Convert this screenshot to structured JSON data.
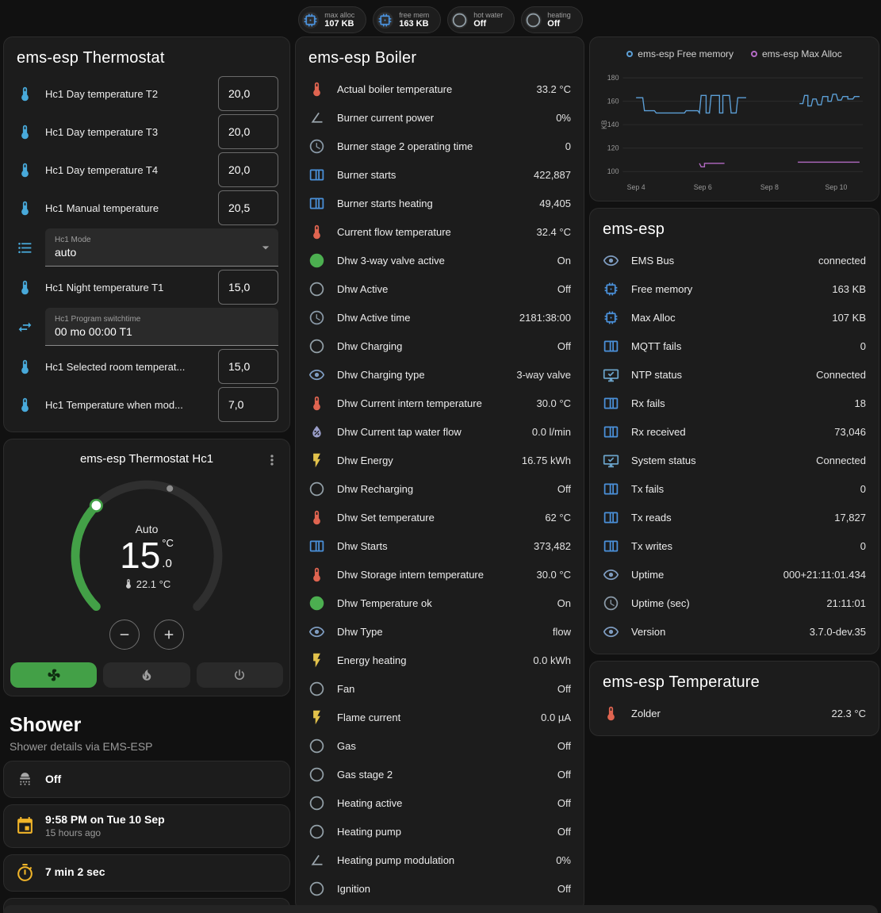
{
  "colors": {
    "accent_green": "#43a047",
    "badge_blue": "#4a90d9",
    "amber": "#f0b429"
  },
  "topbar": {
    "badges": [
      {
        "icon": "memory",
        "label": "max alloc",
        "value": "107 KB"
      },
      {
        "icon": "memory",
        "label": "free mem",
        "value": "163 KB"
      },
      {
        "icon": "circle-outline",
        "label": "hot water",
        "value": "Off"
      },
      {
        "icon": "circle-outline",
        "label": "heating",
        "value": "Off"
      }
    ]
  },
  "settings": {
    "title": "ems-esp Thermostat",
    "rows": [
      {
        "type": "number",
        "icon": "thermometer-water",
        "label": "Hc1 Day temperature T2",
        "field_label": "",
        "value": "20,0"
      },
      {
        "type": "number",
        "icon": "thermometer-water",
        "label": "Hc1 Day temperature T3",
        "field_label": "",
        "value": "20,0"
      },
      {
        "type": "number",
        "icon": "thermometer-water",
        "label": "Hc1 Day temperature T4",
        "field_label": "",
        "value": "20,0"
      },
      {
        "type": "number",
        "icon": "thermometer-water",
        "label": "Hc1 Manual temperature",
        "field_label": "",
        "value": "20,5"
      },
      {
        "type": "select",
        "icon": "list",
        "label": "",
        "field_label": "Hc1 Mode",
        "value": "auto"
      },
      {
        "type": "number",
        "icon": "thermometer-water",
        "label": "Hc1 Night temperature T1",
        "field_label": "",
        "value": "15,0"
      },
      {
        "type": "text",
        "icon": "program",
        "label": "",
        "field_label": "Hc1 Program switchtime",
        "value": "00 mo 00:00 T1"
      },
      {
        "type": "number",
        "icon": "thermometer-water",
        "label": "Hc1 Selected room temperat...",
        "field_label": "",
        "value": "15,0"
      },
      {
        "type": "number",
        "icon": "thermometer-water",
        "label": "Hc1 Temperature when mod...",
        "field_label": "",
        "value": "7,0"
      }
    ]
  },
  "thermostat_hc1": {
    "title": "ems-esp Thermostat Hc1",
    "mode": "Auto",
    "target_whole": "15",
    "target_fraction": ".0",
    "unit": "°C",
    "current_temp": "22.1 °C",
    "mode_buttons": [
      {
        "icon": "fan",
        "state": "active"
      },
      {
        "icon": "fire",
        "state": "inactive"
      },
      {
        "icon": "power",
        "state": "inactive"
      }
    ]
  },
  "shower": {
    "heading": "Shower",
    "subheading": "Shower details via EMS-ESP",
    "tiles": [
      {
        "icon": "shower-head",
        "title": "Off",
        "subtitle": ""
      },
      {
        "icon": "calendar",
        "title": "9:58 PM on Tue 10 Sep",
        "subtitle": "15 hours ago"
      },
      {
        "icon": "timer",
        "title": "7 min 2 sec",
        "subtitle": ""
      }
    ],
    "partial_tile_icon": "snowflake"
  },
  "boiler": {
    "title": "ems-esp Boiler",
    "rows": [
      {
        "icon": "thermometer",
        "label": "Actual boiler temperature",
        "value": "33.2 °C"
      },
      {
        "icon": "angle",
        "label": "Burner current power",
        "value": "0%"
      },
      {
        "icon": "clock",
        "label": "Burner stage 2 operating time",
        "value": "0"
      },
      {
        "icon": "counter",
        "label": "Burner starts",
        "value": "422,887"
      },
      {
        "icon": "counter",
        "label": "Burner starts heating",
        "value": "49,405"
      },
      {
        "icon": "thermometer",
        "label": "Current flow temperature",
        "value": "32.4 °C"
      },
      {
        "icon": "check-circle",
        "label": "Dhw 3-way valve active",
        "value": "On"
      },
      {
        "icon": "circle-outline",
        "label": "Dhw Active",
        "value": "Off"
      },
      {
        "icon": "clock",
        "label": "Dhw Active time",
        "value": "2181:38:00"
      },
      {
        "icon": "circle-outline",
        "label": "Dhw Charging",
        "value": "Off"
      },
      {
        "icon": "eye",
        "label": "Dhw Charging type",
        "value": "3-way valve"
      },
      {
        "icon": "thermometer",
        "label": "Dhw Current intern temperature",
        "value": "30.0 °C"
      },
      {
        "icon": "water-pump",
        "label": "Dhw Current tap water flow",
        "value": "0.0 l/min"
      },
      {
        "icon": "flash",
        "label": "Dhw Energy",
        "value": "16.75 kWh"
      },
      {
        "icon": "circle-outline",
        "label": "Dhw Recharging",
        "value": "Off"
      },
      {
        "icon": "thermometer",
        "label": "Dhw Set temperature",
        "value": "62 °C"
      },
      {
        "icon": "counter",
        "label": "Dhw Starts",
        "value": "373,482"
      },
      {
        "icon": "thermometer",
        "label": "Dhw Storage intern temperature",
        "value": "30.0 °C"
      },
      {
        "icon": "check-circle",
        "label": "Dhw Temperature ok",
        "value": "On"
      },
      {
        "icon": "eye",
        "label": "Dhw Type",
        "value": "flow"
      },
      {
        "icon": "flash",
        "label": "Energy heating",
        "value": "0.0 kWh"
      },
      {
        "icon": "circle-outline",
        "label": "Fan",
        "value": "Off"
      },
      {
        "icon": "flash",
        "label": "Flame current",
        "value": "0.0 µA"
      },
      {
        "icon": "circle-outline",
        "label": "Gas",
        "value": "Off"
      },
      {
        "icon": "circle-outline",
        "label": "Gas stage 2",
        "value": "Off"
      },
      {
        "icon": "circle-outline",
        "label": "Heating active",
        "value": "Off"
      },
      {
        "icon": "circle-outline",
        "label": "Heating pump",
        "value": "Off"
      },
      {
        "icon": "angle",
        "label": "Heating pump modulation",
        "value": "0%"
      },
      {
        "icon": "circle-outline",
        "label": "Ignition",
        "value": "Off"
      }
    ]
  },
  "status": {
    "title": "ems-esp",
    "rows": [
      {
        "icon": "eye",
        "label": "EMS Bus",
        "value": "connected"
      },
      {
        "icon": "memory",
        "label": "Free memory",
        "value": "163 KB"
      },
      {
        "icon": "memory",
        "label": "Max Alloc",
        "value": "107 KB"
      },
      {
        "icon": "counter",
        "label": "MQTT fails",
        "value": "0"
      },
      {
        "icon": "monitor-check",
        "label": "NTP status",
        "value": "Connected"
      },
      {
        "icon": "counter",
        "label": "Rx fails",
        "value": "18"
      },
      {
        "icon": "counter",
        "label": "Rx received",
        "value": "73,046"
      },
      {
        "icon": "monitor-check",
        "label": "System status",
        "value": "Connected"
      },
      {
        "icon": "counter",
        "label": "Tx fails",
        "value": "0"
      },
      {
        "icon": "counter",
        "label": "Tx reads",
        "value": "17,827"
      },
      {
        "icon": "counter",
        "label": "Tx writes",
        "value": "0"
      },
      {
        "icon": "eye",
        "label": "Uptime",
        "value": "000+21:11:01.434"
      },
      {
        "icon": "clock",
        "label": "Uptime (sec)",
        "value": "21:11:01"
      },
      {
        "icon": "eye",
        "label": "Version",
        "value": "3.7.0-dev.35"
      }
    ]
  },
  "temperature": {
    "title": "ems-esp Temperature",
    "rows": [
      {
        "icon": "thermometer",
        "label": "Zolder",
        "value": "22.3 °C"
      }
    ]
  },
  "chart_data": {
    "type": "line",
    "title": "",
    "ylabel": "KB",
    "ylim": [
      95,
      185
    ],
    "yticks": [
      100,
      120,
      140,
      160,
      180
    ],
    "xlim": [
      3.6,
      10.8
    ],
    "xticks": [
      {
        "x": 4,
        "label": "Sep 4"
      },
      {
        "x": 6,
        "label": "Sep 6"
      },
      {
        "x": 8,
        "label": "Sep 8"
      },
      {
        "x": 10,
        "label": "Sep 10"
      }
    ],
    "legend_position": "top",
    "grid": true,
    "series": [
      {
        "name": "ems-esp Free memory",
        "color": "#5c9fd6",
        "points": [
          [
            4.0,
            163
          ],
          [
            4.2,
            163
          ],
          [
            4.25,
            152
          ],
          [
            4.55,
            152
          ],
          [
            4.6,
            150
          ],
          [
            5.45,
            150
          ],
          [
            5.5,
            152
          ],
          [
            5.85,
            152
          ],
          [
            5.9,
            150
          ],
          [
            5.95,
            165
          ],
          [
            6.1,
            165
          ],
          [
            6.1,
            150
          ],
          [
            6.2,
            150
          ],
          [
            6.25,
            165
          ],
          [
            6.5,
            165
          ],
          [
            6.5,
            150
          ],
          [
            6.6,
            150
          ],
          [
            6.6,
            165
          ],
          [
            6.8,
            165
          ],
          [
            6.85,
            150
          ],
          [
            7.0,
            150
          ],
          [
            7.05,
            163
          ],
          [
            7.3,
            163
          ],
          null,
          [
            8.9,
            158
          ],
          [
            9.0,
            158
          ],
          [
            9.05,
            165
          ],
          [
            9.15,
            165
          ],
          [
            9.15,
            156
          ],
          [
            9.25,
            156
          ],
          [
            9.3,
            162
          ],
          [
            9.4,
            162
          ],
          [
            9.45,
            157
          ],
          [
            9.55,
            157
          ],
          [
            9.6,
            164
          ],
          [
            9.75,
            164
          ],
          [
            9.75,
            160
          ],
          [
            9.85,
            160
          ],
          [
            9.9,
            166
          ],
          [
            10.0,
            166
          ],
          [
            10.05,
            161
          ],
          [
            10.15,
            161
          ],
          [
            10.2,
            164
          ],
          [
            10.35,
            164
          ],
          [
            10.35,
            162
          ],
          [
            10.5,
            162
          ],
          [
            10.55,
            164
          ],
          [
            10.7,
            164
          ]
        ]
      },
      {
        "name": "ems-esp Max Alloc",
        "color": "#b36ac4",
        "points": [
          [
            5.9,
            107
          ],
          [
            5.95,
            104
          ],
          [
            6.05,
            104
          ],
          [
            6.05,
            107
          ],
          [
            6.65,
            107
          ],
          null,
          [
            8.85,
            108
          ],
          [
            10.7,
            108
          ]
        ]
      }
    ]
  }
}
